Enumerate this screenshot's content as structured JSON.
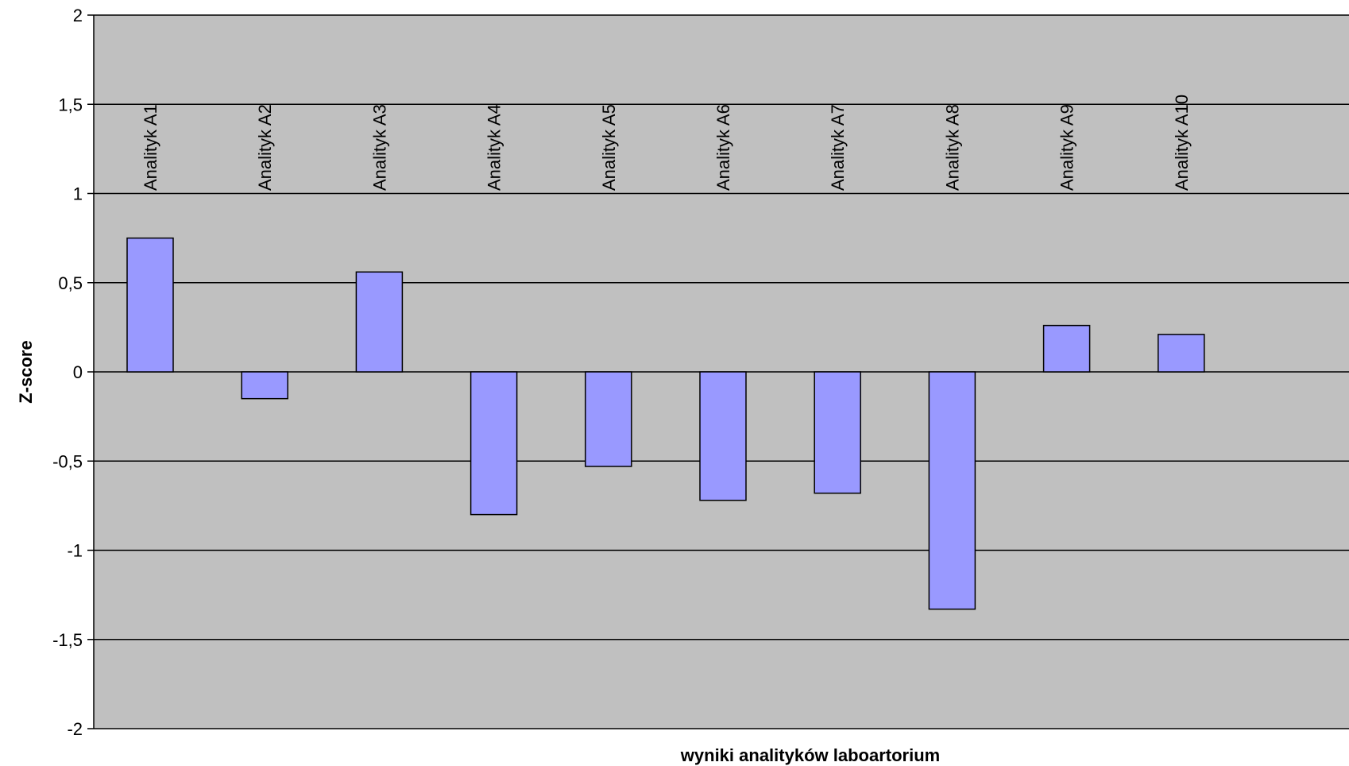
{
  "chart_data": {
    "type": "bar",
    "categories": [
      "Analityk A1",
      "Analityk  A2",
      "Analityk A3",
      "Analityk  A4",
      "Analityk  A5",
      "Analityk  A6",
      "Analityk  A7",
      "Analityk  A8",
      "Analityk  A9",
      "Analityk  A10"
    ],
    "values": [
      0.75,
      -0.15,
      0.56,
      -0.8,
      -0.53,
      -0.72,
      -0.68,
      -1.33,
      0.26,
      0.21
    ],
    "title": "",
    "xlabel": "wyniki analityków laboartorium",
    "ylabel": "Z-score",
    "ylim": [
      -2,
      2
    ],
    "yticks": [
      2,
      1.5,
      1,
      0.5,
      0,
      -0.5,
      -1,
      -1.5,
      -2
    ],
    "ytick_labels": [
      "2",
      "1,5",
      "1",
      "0,5",
      "0",
      "-0,5",
      "-1",
      "-1,5",
      "-2"
    ],
    "grid": true,
    "legend": "none",
    "colors": {
      "plot_background": "#c0c0c0",
      "bar_fill": "#9999ff",
      "bar_stroke": "#000000",
      "gridline": "#000000"
    }
  }
}
